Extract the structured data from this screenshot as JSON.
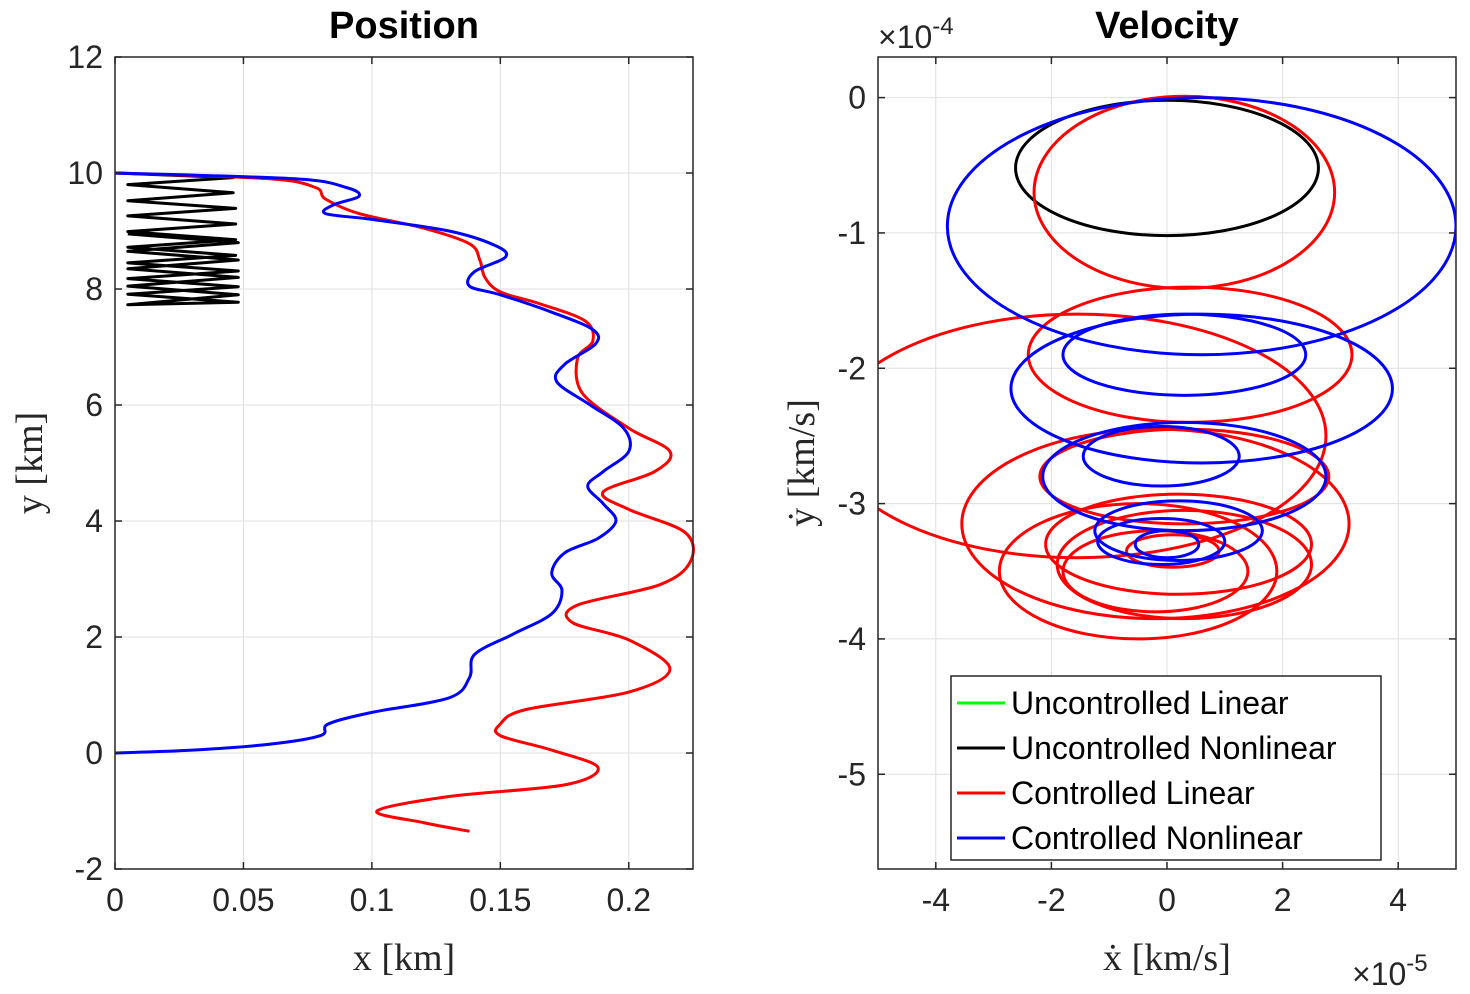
{
  "chart_data": [
    {
      "type": "line",
      "title": "Position",
      "xlabel": "x [km]",
      "ylabel": "y [km]",
      "xlim": [
        0,
        0.225
      ],
      "ylim": [
        -2,
        12
      ],
      "xticks": [
        0,
        0.05,
        0.1,
        0.15,
        0.2
      ],
      "xtick_labels": [
        "0",
        "0.05",
        "0.1",
        "0.15",
        "0.2"
      ],
      "yticks": [
        -2,
        0,
        2,
        4,
        6,
        8,
        10,
        12
      ],
      "ytick_labels": [
        "-2",
        "0",
        "2",
        "4",
        "6",
        "8",
        "10",
        "12"
      ],
      "grid": true,
      "series": [
        {
          "name": "Uncontrolled Nonlinear",
          "color": "#000000",
          "x": [
            0,
            0.046,
            0.005,
            0.046,
            0.005,
            0.047,
            0.005,
            0.047,
            0.005,
            0.047,
            0.005,
            0.047,
            0.005,
            0.048,
            0.005,
            0.048,
            0.005,
            0.048,
            0.005,
            0.048,
            0.005,
            0.048,
            0.005,
            0.048,
            0.005,
            0.048,
            0.005
          ],
          "y": [
            10.0,
            9.92,
            9.8,
            9.66,
            9.52,
            9.39,
            9.26,
            9.12,
            8.99,
            8.85,
            8.72,
            8.58,
            8.45,
            8.31,
            8.18,
            8.04,
            7.91,
            7.77,
            7.73,
            7.9,
            8.05,
            8.2,
            8.35,
            8.5,
            8.65,
            8.8,
            8.95
          ]
        },
        {
          "name": "Controlled Linear",
          "color": "#ff0000",
          "x": [
            0,
            0.06,
            0.078,
            0.082,
            0.095,
            0.12,
            0.138,
            0.142,
            0.144,
            0.15,
            0.165,
            0.183,
            0.186,
            0.18,
            0.182,
            0.2,
            0.216,
            0.21,
            0.19,
            0.2,
            0.222,
            0.224,
            0.212,
            0.18,
            0.178,
            0.2,
            0.216,
            0.2,
            0.16,
            0.15,
            0.15,
            0.17,
            0.188,
            0.175,
            0.13,
            0.102,
            0.12,
            0.138
          ],
          "y": [
            10.0,
            9.9,
            9.75,
            9.55,
            9.3,
            9.05,
            8.78,
            8.5,
            8.2,
            7.95,
            7.75,
            7.45,
            7.1,
            6.8,
            6.2,
            5.6,
            5.2,
            4.85,
            4.5,
            4.2,
            3.8,
            3.3,
            2.9,
            2.55,
            2.25,
            1.95,
            1.45,
            1.05,
            0.75,
            0.5,
            0.3,
            0.05,
            -0.25,
            -0.55,
            -0.75,
            -1.0,
            -1.2,
            -1.35
          ]
        },
        {
          "name": "Controlled Nonlinear",
          "color": "#0000ff",
          "x": [
            0,
            0.07,
            0.09,
            0.095,
            0.085,
            0.082,
            0.1,
            0.13,
            0.148,
            0.152,
            0.14,
            0.138,
            0.15,
            0.17,
            0.186,
            0.187,
            0.175,
            0.172,
            0.185,
            0.198,
            0.2,
            0.19,
            0.184,
            0.19,
            0.195,
            0.188,
            0.175,
            0.17,
            0.174,
            0.17,
            0.155,
            0.14,
            0.138,
            0.13,
            0.1,
            0.083,
            0.08,
            0.06,
            0.03,
            0
          ],
          "y": [
            10.0,
            9.9,
            9.75,
            9.6,
            9.45,
            9.3,
            9.2,
            9.0,
            8.75,
            8.55,
            8.3,
            8.05,
            7.9,
            7.6,
            7.3,
            7.05,
            6.7,
            6.4,
            6.0,
            5.6,
            5.2,
            4.85,
            4.6,
            4.3,
            4.0,
            3.7,
            3.45,
            3.1,
            2.8,
            2.4,
            2.05,
            1.7,
            1.3,
            0.95,
            0.7,
            0.5,
            0.3,
            0.15,
            0.05,
            0.0
          ]
        }
      ]
    },
    {
      "type": "line",
      "title": "Velocity",
      "xlabel": "ẋ [km/s]",
      "ylabel": "ẏ [km/s]",
      "xlim": [
        -5,
        5
      ],
      "ylim": [
        -5.7,
        0.3
      ],
      "x_multiplier": "×10",
      "x_exponent": "-5",
      "y_multiplier": "×10",
      "y_exponent": "-4",
      "xticks": [
        -4,
        -2,
        0,
        2,
        4
      ],
      "xtick_labels": [
        "-4",
        "-2",
        "0",
        "2",
        "4"
      ],
      "yticks": [
        0,
        -1,
        -2,
        -3,
        -4,
        -5
      ],
      "ytick_labels": [
        "0",
        "-1",
        "-2",
        "-3",
        "-4",
        "-5"
      ],
      "grid": true,
      "legend_position": "bottom-right",
      "legend": [
        {
          "label": "Uncontrolled Linear",
          "color": "#00ff00"
        },
        {
          "label": "Uncontrolled Nonlinear",
          "color": "#000000"
        },
        {
          "label": "Controlled Linear",
          "color": "#ff0000"
        },
        {
          "label": "Controlled Nonlinear",
          "color": "#0000ff"
        }
      ],
      "curves": [
        {
          "series": "Uncontrolled Nonlinear",
          "color": "#000000",
          "ellipses": [
            {
              "cx": 0,
              "cy": -0.52,
              "rx": 2.62,
              "ry": 0.5
            }
          ]
        },
        {
          "series": "Controlled Linear",
          "color": "#ff0000",
          "ellipses": [
            {
              "cx": 0.3,
              "cy": -0.7,
              "rx": 2.6,
              "ry": 0.71
            },
            {
              "cx": 0.4,
              "cy": -1.9,
              "rx": 2.8,
              "ry": 0.5
            },
            {
              "cx": -1.55,
              "cy": -2.5,
              "rx": 4.3,
              "ry": 0.9
            },
            {
              "cx": 0.3,
              "cy": -2.8,
              "rx": 2.5,
              "ry": 0.35
            },
            {
              "cx": -0.2,
              "cy": -3.15,
              "rx": 3.35,
              "ry": 0.7
            },
            {
              "cx": 0.2,
              "cy": -3.3,
              "rx": 2.3,
              "ry": 0.37
            },
            {
              "cx": -0.5,
              "cy": -3.5,
              "rx": 2.4,
              "ry": 0.5
            },
            {
              "cx": 0.3,
              "cy": -3.45,
              "rx": 2.2,
              "ry": 0.4
            },
            {
              "cx": -0.2,
              "cy": -3.5,
              "rx": 1.6,
              "ry": 0.3
            },
            {
              "cx": 0.1,
              "cy": -3.35,
              "rx": 0.8,
              "ry": 0.12
            }
          ]
        },
        {
          "series": "Controlled Nonlinear",
          "color": "#0000ff",
          "ellipses": [
            {
              "cx": 0.6,
              "cy": -0.95,
              "rx": 4.4,
              "ry": 0.95
            },
            {
              "cx": 0.6,
              "cy": -2.15,
              "rx": 3.3,
              "ry": 0.55
            },
            {
              "cx": 0.3,
              "cy": -1.9,
              "rx": 2.1,
              "ry": 0.3
            },
            {
              "cx": 0.3,
              "cy": -2.8,
              "rx": 2.45,
              "ry": 0.4
            },
            {
              "cx": -0.1,
              "cy": -2.65,
              "rx": 1.35,
              "ry": 0.22
            },
            {
              "cx": 0.2,
              "cy": -3.2,
              "rx": 1.45,
              "ry": 0.22
            },
            {
              "cx": -0.1,
              "cy": -3.28,
              "rx": 1.1,
              "ry": 0.17
            },
            {
              "cx": 0.0,
              "cy": -3.3,
              "rx": 0.55,
              "ry": 0.1
            }
          ]
        }
      ]
    }
  ]
}
